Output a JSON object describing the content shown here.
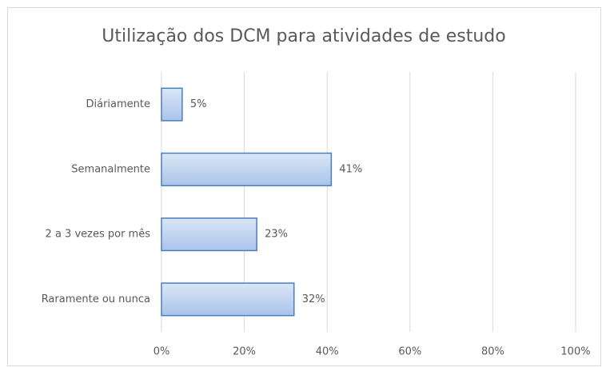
{
  "chart_data": {
    "type": "bar",
    "orientation": "horizontal",
    "title": "Utilização dos DCM para atividades de estudo",
    "categories": [
      "Diáriamente",
      "Semanalmente",
      "2 a 3 vezes por mês",
      "Raramente ou nunca"
    ],
    "values": [
      5,
      41,
      23,
      32
    ],
    "value_labels": [
      "5%",
      "41%",
      "23%",
      "32%"
    ],
    "color": "#a9c4ea",
    "xlim": [
      0,
      100
    ],
    "xticks": [
      {
        "value": 0,
        "label": "0%"
      },
      {
        "value": 20,
        "label": "20%"
      },
      {
        "value": 40,
        "label": "40%"
      },
      {
        "value": 60,
        "label": "60%"
      },
      {
        "value": 80,
        "label": "80%"
      },
      {
        "value": 100,
        "label": "100%"
      }
    ],
    "grid": true
  }
}
